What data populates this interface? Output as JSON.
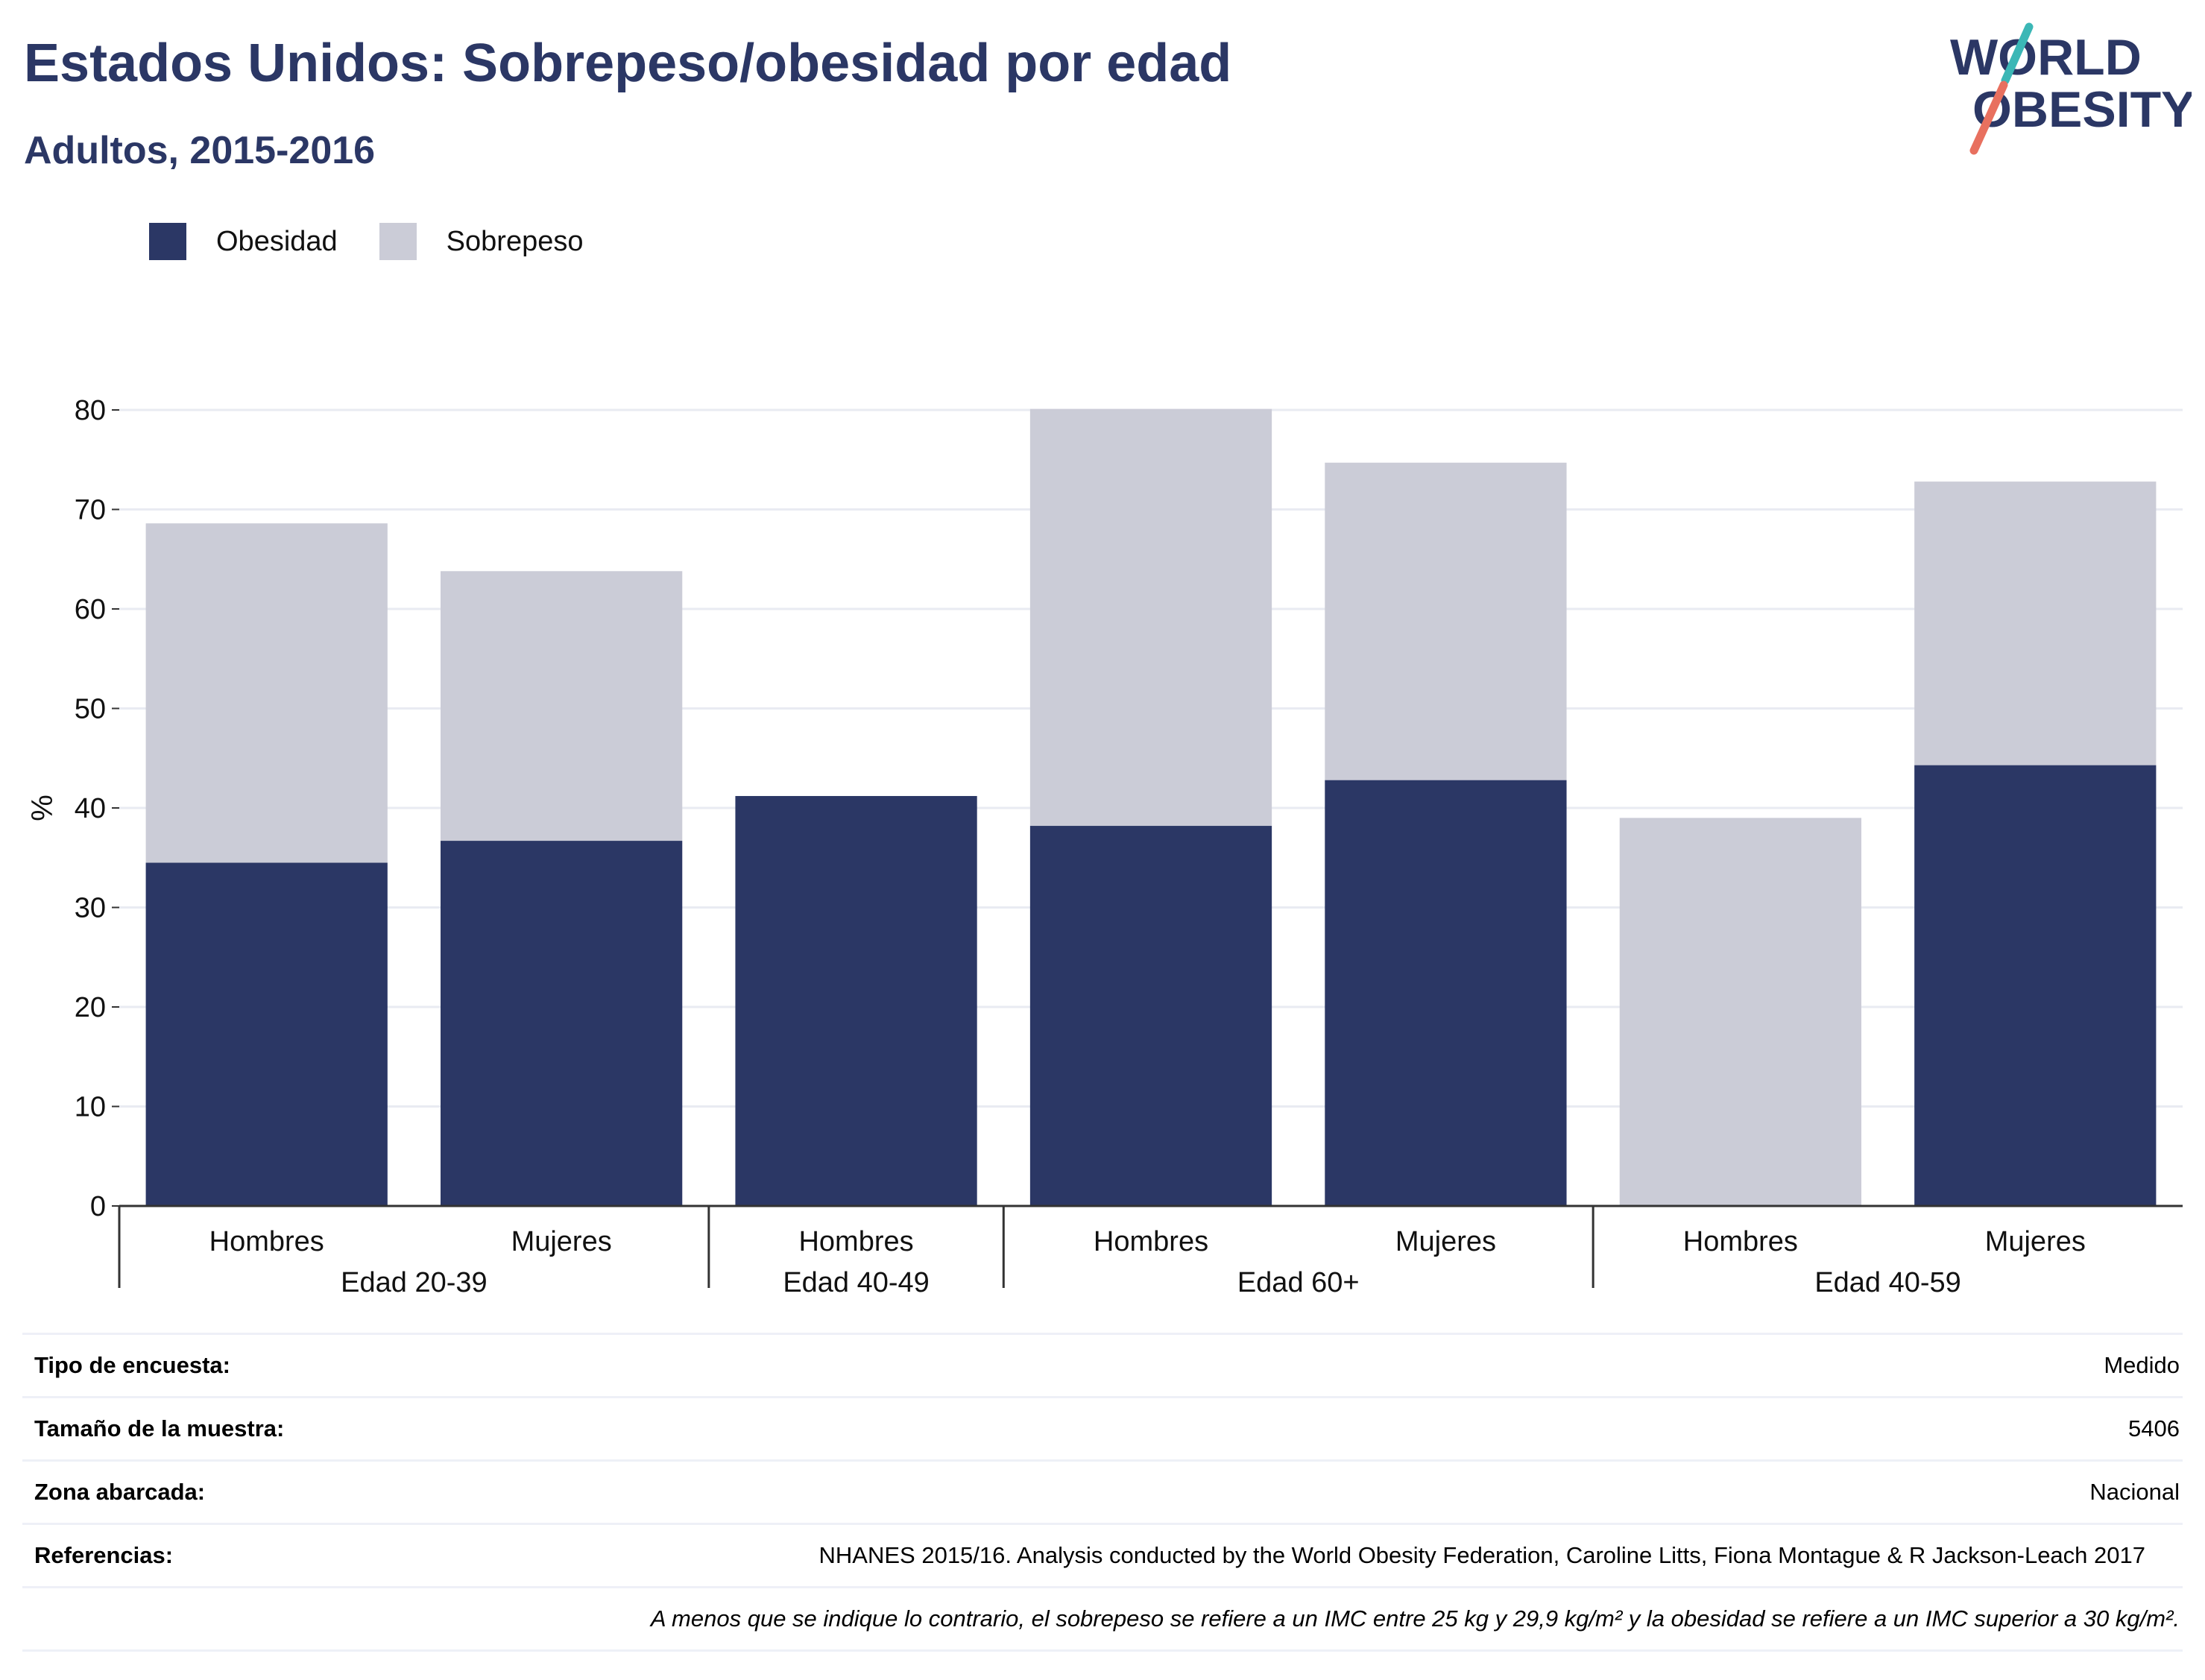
{
  "header": {
    "title": "Estados Unidos: Sobrepeso/obesidad por edad",
    "subtitle": "Adultos, 2015-2016"
  },
  "logo": {
    "line1": "WORLD",
    "line2": "OBESITY",
    "text_color": "#2b3765",
    "slash_top_color": "#3bb7b6",
    "slash_bottom_color": "#e8705f"
  },
  "legend": {
    "items": [
      {
        "label": "Obesidad",
        "color": "#2b3765"
      },
      {
        "label": "Sobrepeso",
        "color": "#cbccd7"
      }
    ]
  },
  "chart_data": {
    "type": "bar",
    "stacked": true,
    "ylabel": "%",
    "xlabel": "",
    "ylim": [
      0,
      80
    ],
    "yticks": [
      0,
      10,
      20,
      30,
      40,
      50,
      60,
      70,
      80
    ],
    "grid": true,
    "legend_position": "top-left",
    "categories": [
      "Hombres",
      "Mujeres",
      "Hombres",
      "Hombres",
      "Mujeres",
      "Hombres",
      "Mujeres"
    ],
    "groups": [
      {
        "label": "Edad 20-39",
        "count": 2
      },
      {
        "label": "Edad 40-49",
        "count": 1
      },
      {
        "label": "Edad 60+",
        "count": 2
      },
      {
        "label": "Edad 40-59",
        "count": 2
      }
    ],
    "series": [
      {
        "name": "Obesidad",
        "color": "#2b3765",
        "values": [
          34.5,
          36.7,
          41.2,
          38.2,
          42.8,
          0,
          44.3
        ]
      },
      {
        "name": "Sobrepeso",
        "color": "#cbccd7",
        "values": [
          34.1,
          27.1,
          0,
          41.9,
          31.9,
          39.0,
          28.5
        ]
      }
    ]
  },
  "meta": {
    "survey_type": {
      "label": "Tipo de encuesta:",
      "value": "Medido"
    },
    "sample_size": {
      "label": "Tamaño de la muestra:",
      "value": "5406"
    },
    "area": {
      "label": "Zona abarcada:",
      "value": "Nacional"
    },
    "references": {
      "label": "Referencias:",
      "value": "NHANES 2015/16. Analysis conducted by the World Obesity Federation, Caroline Litts, Fiona Montague & R Jackson-Leach 2017"
    },
    "note": "A menos que se indique lo contrario, el sobrepeso se refiere a un IMC entre 25 kg y 29,9 kg/m² y la obesidad se refiere a un IMC superior a 30 kg/m²."
  }
}
